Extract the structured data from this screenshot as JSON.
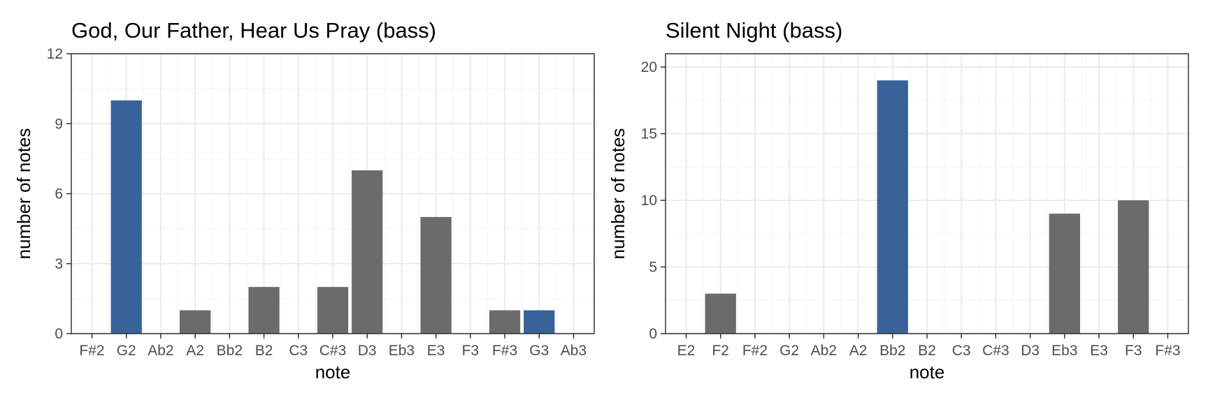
{
  "chart_data": [
    {
      "type": "bar",
      "title": "God, Our Father, Hear Us Pray (bass)",
      "xlabel": "note",
      "ylabel": "number of notes",
      "categories": [
        "F#2",
        "G2",
        "Ab2",
        "A2",
        "Bb2",
        "B2",
        "C3",
        "C#3",
        "D3",
        "Eb3",
        "E3",
        "F3",
        "F#3",
        "G3",
        "Ab3"
      ],
      "values": [
        0,
        10,
        0,
        1,
        0,
        2,
        0,
        2,
        7,
        0,
        5,
        0,
        1,
        1,
        0
      ],
      "highlight": [
        false,
        true,
        false,
        false,
        false,
        false,
        false,
        false,
        false,
        false,
        false,
        false,
        false,
        true,
        false
      ],
      "yticks": [
        0,
        3,
        6,
        9,
        12
      ],
      "ylim": [
        0,
        12
      ],
      "grid": true
    },
    {
      "type": "bar",
      "title": "Silent Night (bass)",
      "xlabel": "note",
      "ylabel": "number of notes",
      "categories": [
        "E2",
        "F2",
        "F#2",
        "G2",
        "Ab2",
        "A2",
        "Bb2",
        "B2",
        "C3",
        "C#3",
        "D3",
        "Eb3",
        "E3",
        "F3",
        "F#3"
      ],
      "values": [
        0,
        3,
        0,
        0,
        0,
        0,
        19,
        0,
        0,
        0,
        0,
        9,
        0,
        10,
        0
      ],
      "highlight": [
        false,
        false,
        false,
        false,
        false,
        false,
        true,
        false,
        false,
        false,
        false,
        false,
        false,
        false,
        false
      ],
      "yticks": [
        0,
        5,
        10,
        15,
        20
      ],
      "ylim": [
        0,
        21
      ],
      "grid": true
    }
  ],
  "colors": {
    "bar": "#6b6b6b",
    "highlight": "#386399",
    "grid": "#ebebeb",
    "border": "#333333"
  }
}
